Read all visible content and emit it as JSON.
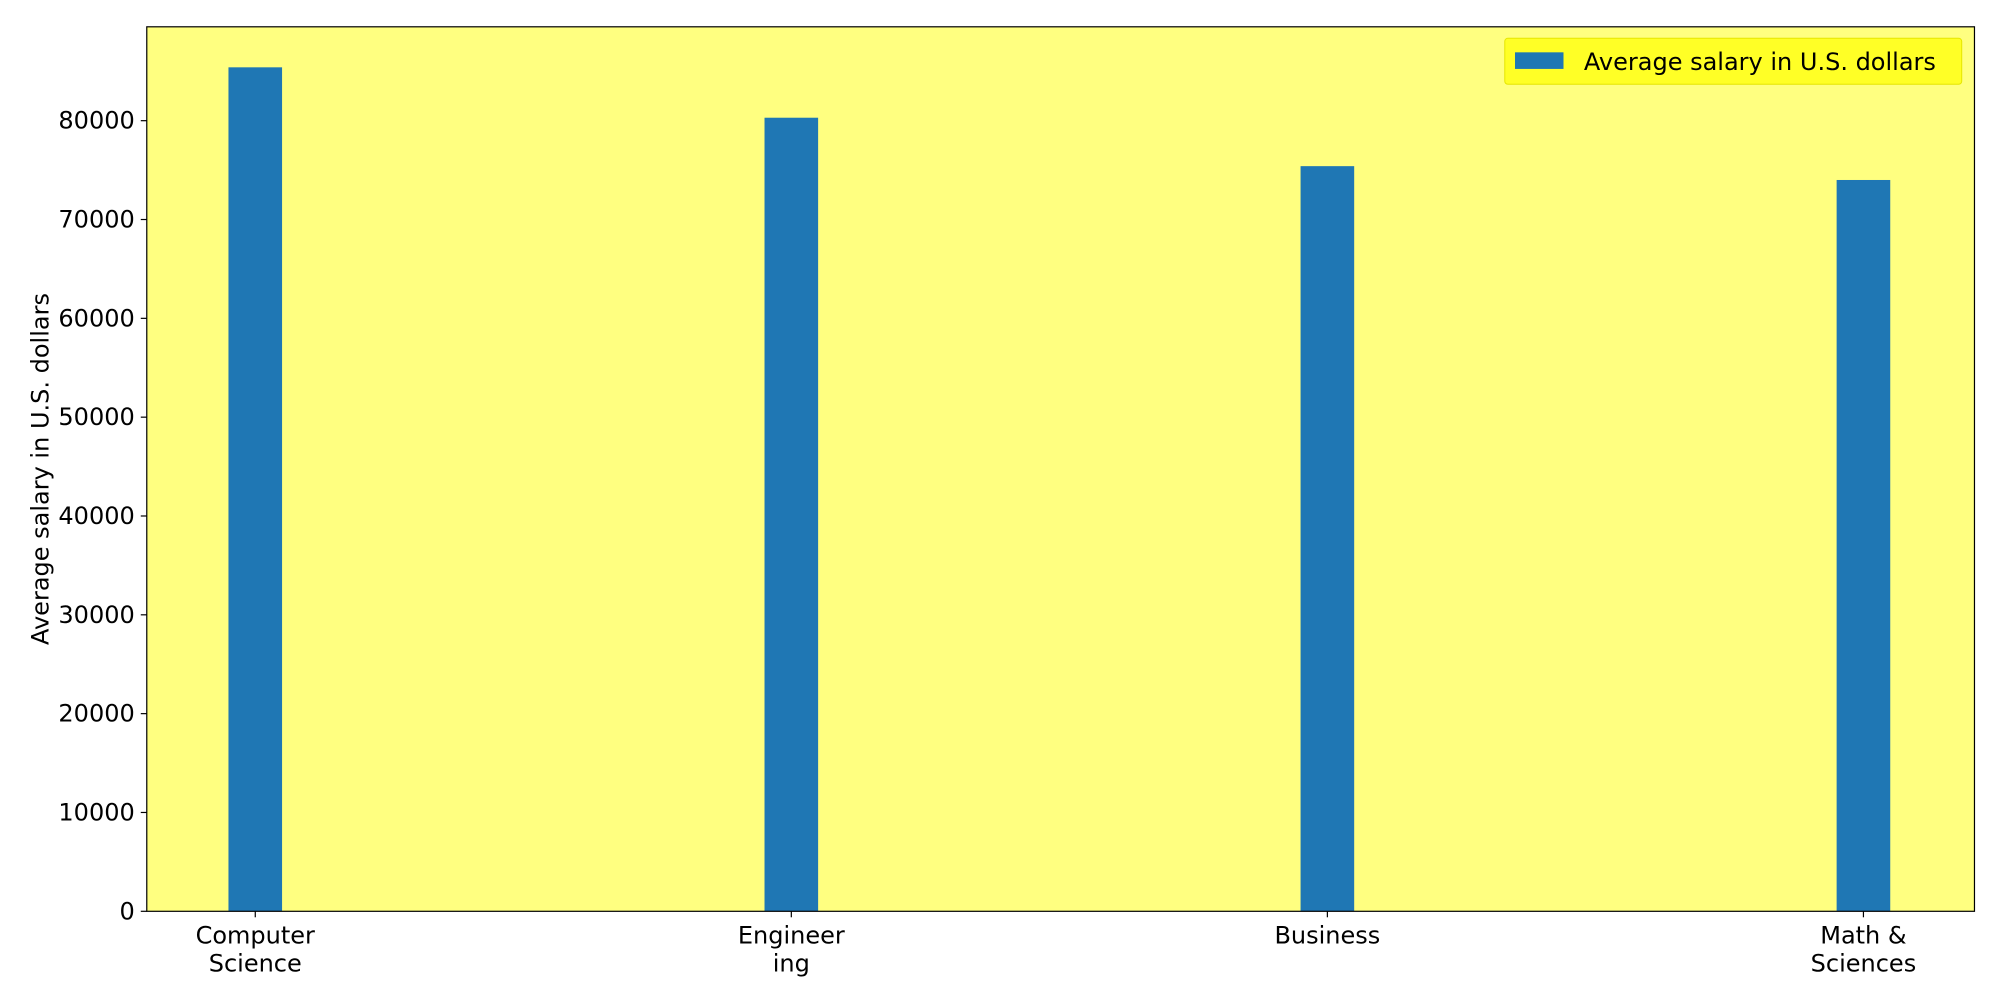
{
  "chart_data": {
    "type": "bar",
    "categories": [
      [
        "Computer",
        "Science"
      ],
      [
        "Engineer",
        "ing"
      ],
      [
        "Business"
      ],
      [
        "Math &",
        "Sciences"
      ]
    ],
    "series": [
      {
        "name": "Average salary in U.S. dollars",
        "values": [
          85400,
          80300,
          75400,
          74000
        ]
      }
    ],
    "xlabel": "",
    "ylabel": "Average salary in U.S. dollars",
    "ylim": [
      0,
      89500
    ],
    "yticks": [
      "0",
      "10000",
      "20000",
      "30000",
      "40000",
      "50000",
      "60000",
      "70000",
      "80000"
    ],
    "grid": false,
    "legend_position": "top-right",
    "colors": {
      "bar": "#1f77b4",
      "plot_background": "#ffff80",
      "legend_background": "#ffff26",
      "figure_background": "#ffffff"
    }
  }
}
